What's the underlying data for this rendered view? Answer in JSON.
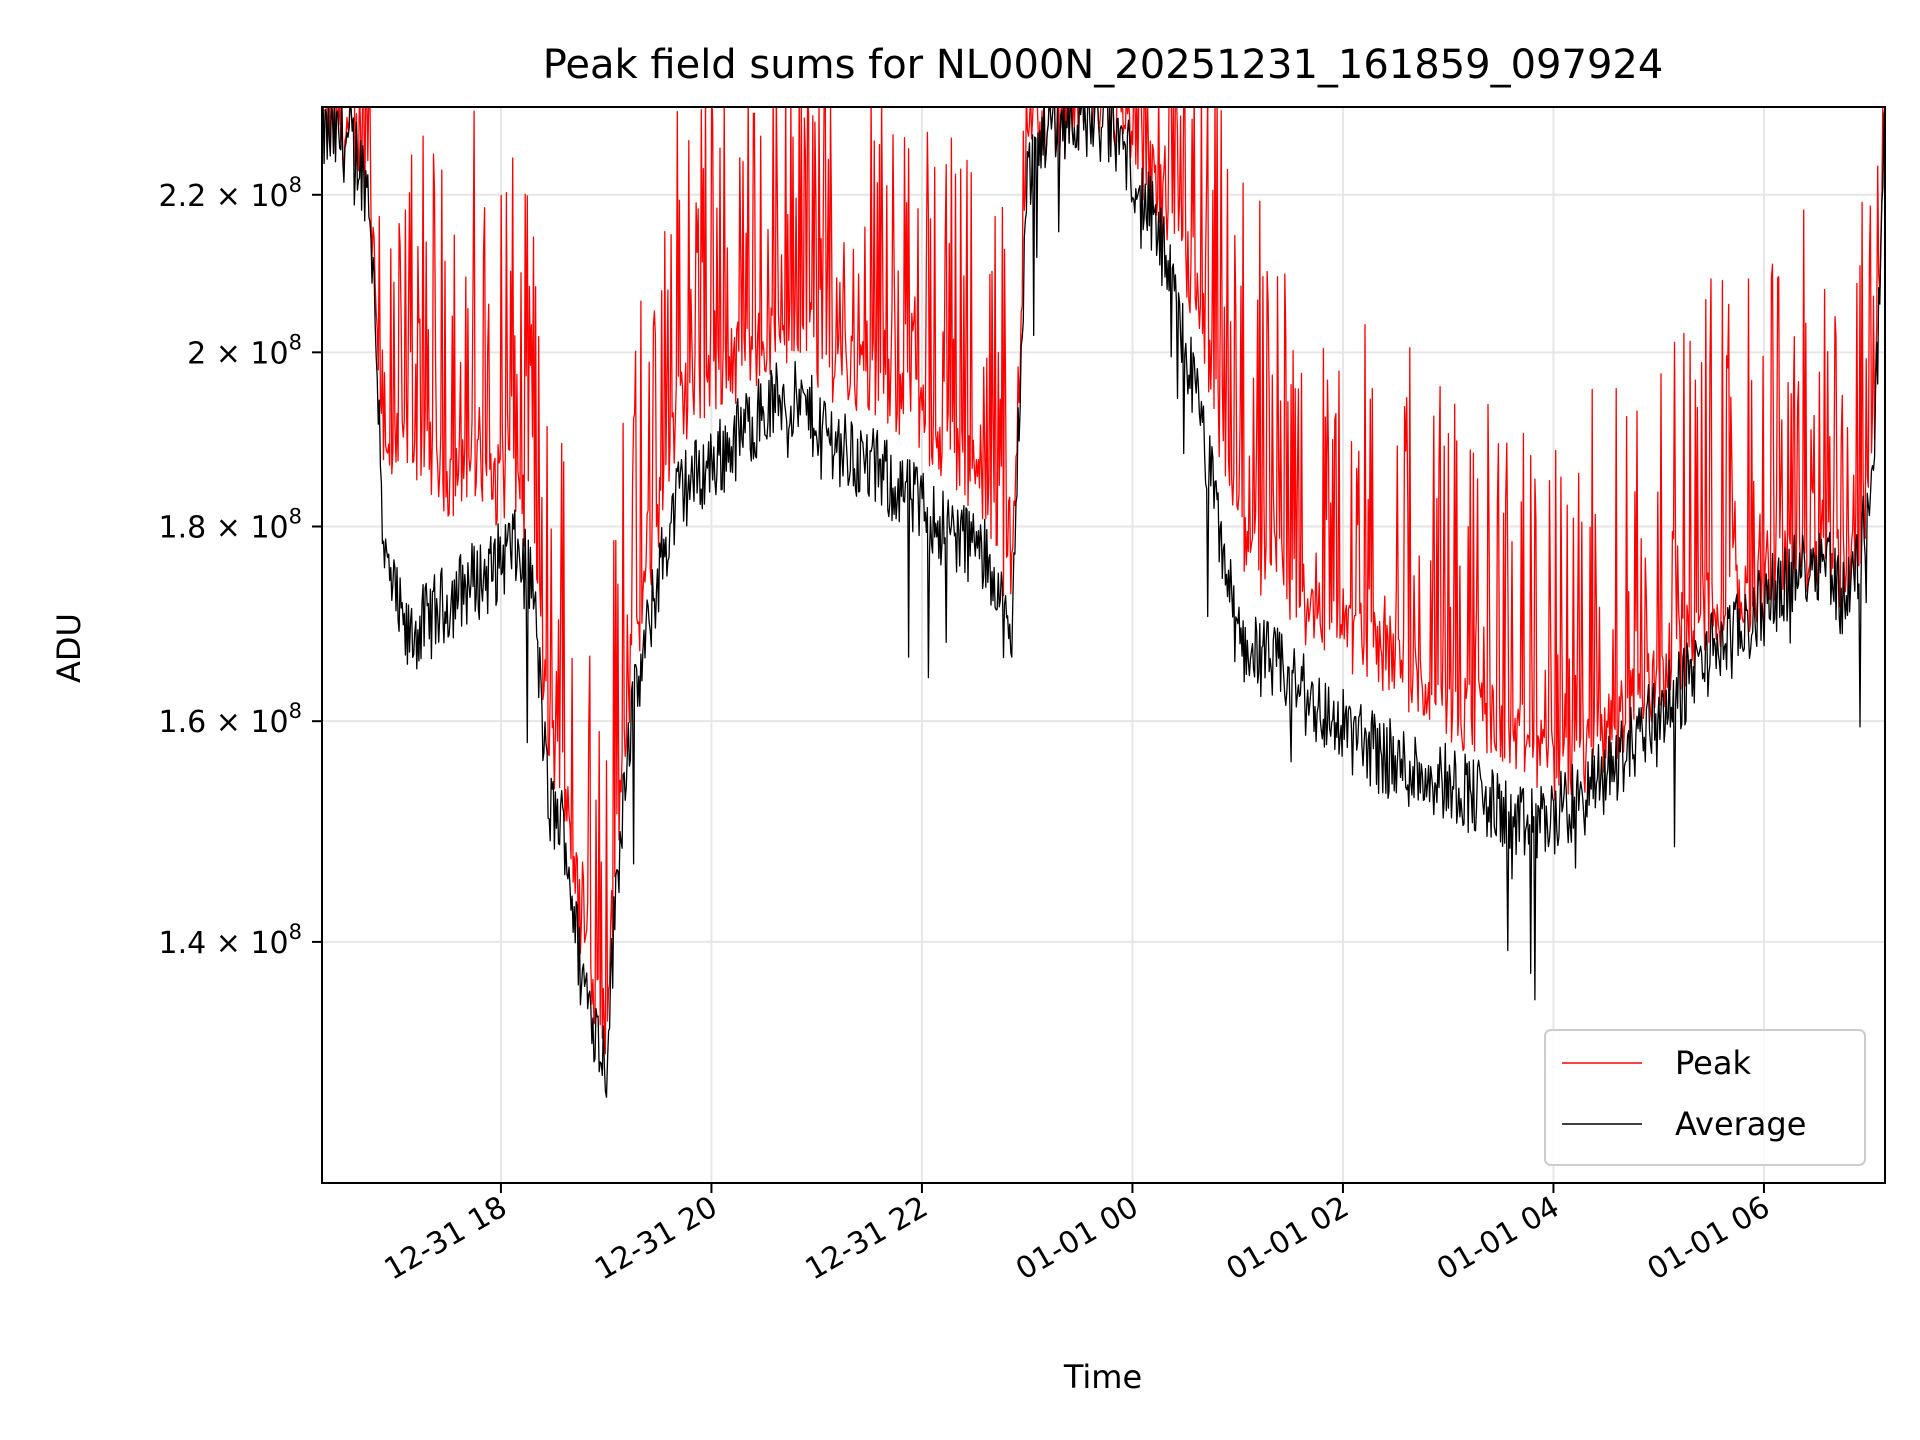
{
  "chart_data": {
    "type": "line",
    "title": "Peak field sums for NL000N_20251231_161859_097924",
    "xlabel": "Time",
    "ylabel": "ADU",
    "x_range_hours": [
      16.3,
      31.15
    ],
    "ylim": [
      121000000.0,
      232000000.0
    ],
    "y_scale": "log",
    "grid": true,
    "legend_position": "lower-right",
    "x_ticks": [
      {
        "hour": 18,
        "label": "12-31 18"
      },
      {
        "hour": 20,
        "label": "12-31 20"
      },
      {
        "hour": 22,
        "label": "12-31 22"
      },
      {
        "hour": 24,
        "label": "01-01 00"
      },
      {
        "hour": 26,
        "label": "01-01 02"
      },
      {
        "hour": 28,
        "label": "01-01 04"
      },
      {
        "hour": 30,
        "label": "01-01 06"
      }
    ],
    "y_ticks": [
      {
        "value": 140000000.0,
        "mantissa": "1.4"
      },
      {
        "value": 160000000.0,
        "mantissa": "1.6"
      },
      {
        "value": 180000000.0,
        "mantissa": "1.8"
      },
      {
        "value": 200000000.0,
        "mantissa": "2"
      },
      {
        "value": 220000000.0,
        "mantissa": "2.2"
      }
    ],
    "y_tick_suffix": "× 10",
    "y_tick_exponent": "8",
    "series": [
      {
        "name": "Peak",
        "color": "#ff0000",
        "x": [
          16.3,
          16.6,
          16.75,
          16.9,
          17.1,
          17.3,
          17.5,
          17.7,
          17.9,
          18.1,
          18.3,
          18.45,
          18.6,
          18.75,
          18.9,
          19.0,
          19.1,
          19.2,
          19.35,
          19.5,
          19.7,
          19.9,
          20.1,
          20.4,
          20.7,
          21.0,
          21.3,
          21.6,
          21.9,
          22.2,
          22.5,
          22.7,
          22.85,
          23.0,
          23.2,
          23.5,
          23.8,
          24.0,
          24.3,
          24.6,
          24.85,
          25.0,
          25.3,
          25.6,
          25.9,
          26.2,
          26.5,
          26.8,
          27.1,
          27.4,
          27.7,
          28.0,
          28.3,
          28.6,
          28.9,
          29.2,
          29.5,
          29.8,
          30.1,
          30.4,
          30.6,
          30.75,
          30.9,
          31.05,
          31.15
        ],
        "y": [
          229000000.0,
          228000000.0,
          222000000.0,
          186000000.0,
          190000000.0,
          189000000.0,
          185000000.0,
          188000000.0,
          184000000.0,
          186000000.0,
          180000000.0,
          158000000.0,
          155000000.0,
          142000000.0,
          136000000.0,
          133000000.0,
          150000000.0,
          162000000.0,
          172000000.0,
          182000000.0,
          194000000.0,
          196000000.0,
          198000000.0,
          200000000.0,
          202000000.0,
          200000000.0,
          198000000.0,
          196000000.0,
          193000000.0,
          190000000.0,
          186000000.0,
          182000000.0,
          172000000.0,
          225000000.0,
          230000000.0,
          231000000.0,
          230000000.0,
          227000000.0,
          218000000.0,
          205000000.0,
          190000000.0,
          180000000.0,
          176000000.0,
          172000000.0,
          170000000.0,
          168000000.0,
          166000000.0,
          163000000.0,
          161000000.0,
          160000000.0,
          158000000.0,
          156000000.0,
          157000000.0,
          160000000.0,
          163000000.0,
          167000000.0,
          170000000.0,
          172000000.0,
          175000000.0,
          177000000.0,
          179000000.0,
          175000000.0,
          178000000.0,
          190000000.0,
          231000000.0
        ]
      },
      {
        "name": "Average",
        "color": "#000000",
        "x": [
          16.3,
          16.6,
          16.75,
          16.9,
          17.1,
          17.3,
          17.5,
          17.7,
          17.9,
          18.1,
          18.3,
          18.45,
          18.6,
          18.75,
          18.9,
          19.0,
          19.1,
          19.2,
          19.35,
          19.5,
          19.7,
          19.9,
          20.1,
          20.4,
          20.7,
          21.0,
          21.3,
          21.6,
          21.9,
          22.2,
          22.5,
          22.7,
          22.85,
          23.0,
          23.2,
          23.5,
          23.8,
          24.0,
          24.3,
          24.6,
          24.85,
          25.0,
          25.3,
          25.6,
          25.9,
          26.2,
          26.5,
          26.8,
          27.1,
          27.4,
          27.7,
          28.0,
          28.3,
          28.6,
          28.9,
          29.2,
          29.5,
          29.8,
          30.1,
          30.4,
          30.6,
          30.75,
          30.9,
          31.05,
          31.15
        ],
        "y": [
          228000000.0,
          227000000.0,
          220000000.0,
          176000000.0,
          168000000.0,
          170000000.0,
          172000000.0,
          174000000.0,
          175000000.0,
          178000000.0,
          174000000.0,
          152000000.0,
          150000000.0,
          138000000.0,
          133000000.0,
          130000000.0,
          145000000.0,
          158000000.0,
          166000000.0,
          175000000.0,
          184000000.0,
          186000000.0,
          188000000.0,
          192000000.0,
          195000000.0,
          192000000.0,
          188000000.0,
          186000000.0,
          183000000.0,
          180000000.0,
          178000000.0,
          175000000.0,
          166000000.0,
          222000000.0,
          230000000.0,
          231000000.0,
          229000000.0,
          224000000.0,
          212000000.0,
          195000000.0,
          178000000.0,
          168000000.0,
          166000000.0,
          163000000.0,
          160000000.0,
          158000000.0,
          156000000.0,
          155000000.0,
          154000000.0,
          152000000.0,
          150000000.0,
          151000000.0,
          153000000.0,
          156000000.0,
          160000000.0,
          163000000.0,
          167000000.0,
          169000000.0,
          173000000.0,
          176000000.0,
          177000000.0,
          172000000.0,
          176000000.0,
          188000000.0,
          230000000.0
        ]
      }
    ]
  }
}
